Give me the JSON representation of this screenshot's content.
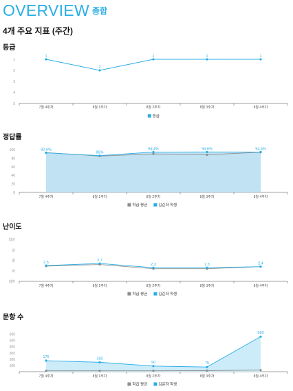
{
  "header": {
    "title": "OVERVIEW",
    "subtitle": "종합"
  },
  "section_heading": "4개 주요 지표 (주간)",
  "charts": {
    "grade": {
      "title": "등급"
    },
    "accuracy": {
      "title": "정답률"
    },
    "difficulty": {
      "title": "난이도"
    },
    "count": {
      "title": "문항 수"
    }
  },
  "colors": {
    "accent": "#29aee6",
    "accent_fill": "#bfe2f2",
    "average": "#8e8e8e",
    "count_fill": "#c8eaf8"
  },
  "chart_data": [
    {
      "type": "line",
      "title": "등급",
      "categories": [
        "7월 4주차",
        "8월 1주차",
        "8월 2주차",
        "8월 3주차",
        "8월 4주차"
      ],
      "y_ticks": [
        "1",
        "2",
        "3",
        "4",
        "5"
      ],
      "ylim": [
        1,
        5
      ],
      "y_inverted": true,
      "legend": "bottom",
      "series": [
        {
          "name": "등급",
          "values": [
            1,
            2,
            1,
            1,
            1
          ],
          "labels": [
            "1",
            "2",
            "1",
            "1",
            "1"
          ],
          "color": "#29aee6"
        }
      ]
    },
    {
      "type": "area",
      "title": "정답률",
      "categories": [
        "7월 4주차",
        "8월 1주차",
        "8월 2주차",
        "8월 3주차",
        "8월 4주차"
      ],
      "y_ticks": [
        "0",
        "20",
        "40",
        "60",
        "80",
        "100"
      ],
      "ylim": [
        0,
        100
      ],
      "legend": "bottom",
      "series": [
        {
          "name": "학급 평균",
          "values": [
            93,
            85,
            90,
            88,
            94
          ],
          "labels": [],
          "color": "#8e8e8e"
        },
        {
          "name": "김준하 학생",
          "values": [
            92.6,
            86,
            94.4,
            94.6,
            94.4
          ],
          "labels": [
            "92.6%",
            "86%",
            "94.4%",
            "94.6%",
            "94.4%"
          ],
          "color": "#29aee6"
        }
      ]
    },
    {
      "type": "line",
      "title": "난이도",
      "categories": [
        "7월 4주차",
        "8월 1주차",
        "8월 2주차",
        "8월 3주차",
        "8월 4주차"
      ],
      "y_ticks": [
        "최하",
        "하",
        "중",
        "상",
        "최상"
      ],
      "ylim": [
        1,
        5
      ],
      "legend": "bottom",
      "series": [
        {
          "name": "학급 평균",
          "values": [
            2.45,
            2.6,
            2.2,
            2.2,
            2.4
          ],
          "labels": [],
          "color": "#8e8e8e"
        },
        {
          "name": "김준하 학생",
          "values": [
            2.5,
            2.7,
            2.3,
            2.3,
            2.4
          ],
          "labels": [
            "2.5",
            "2.7",
            "2.3",
            "2.3",
            "2.4"
          ],
          "color": "#29aee6"
        }
      ]
    },
    {
      "type": "area",
      "title": "문항 수",
      "categories": [
        "7월 4주차",
        "8월 1주차",
        "8월 2주차",
        "8월 3주차",
        "8월 4주차"
      ],
      "y_ticks": [
        "100",
        "200",
        "300",
        "400",
        "500",
        "600"
      ],
      "ylim": [
        0,
        650
      ],
      "legend": "bottom",
      "series": [
        {
          "name": "학급 평균",
          "values": [
            15,
            15,
            15,
            18,
            25
          ],
          "labels": [],
          "color": "#8e8e8e"
        },
        {
          "name": "김준하 학생",
          "values": [
            176,
            150,
            90,
            75,
            560
          ],
          "labels": [
            "176",
            "150",
            "90",
            "75",
            "560"
          ],
          "color": "#29aee6"
        }
      ]
    }
  ]
}
